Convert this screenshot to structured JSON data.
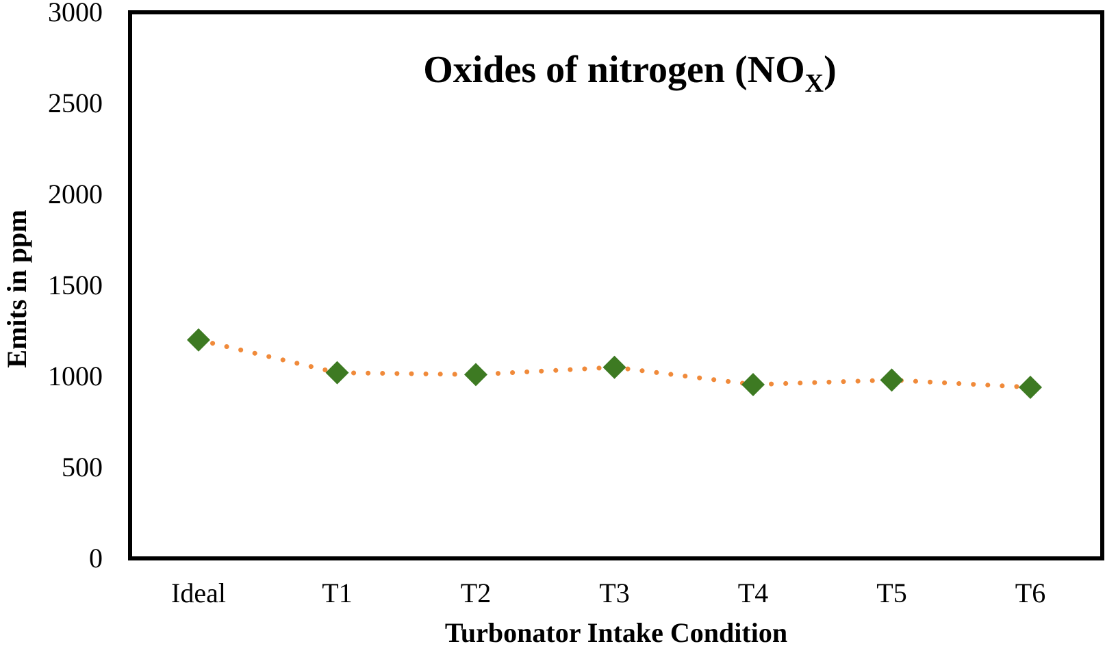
{
  "chart_data": {
    "type": "line",
    "title": "Oxides of nitrogen (NO",
    "title_subscript": "X",
    "title_end": ")",
    "xlabel": "Turbonator  Intake Condition",
    "ylabel": "Emits  in ppm",
    "categories": [
      "Ideal",
      "T1",
      "T2",
      "T3",
      "T4",
      "T5",
      "T6"
    ],
    "series": [
      {
        "values": [
          1200,
          1020,
          1010,
          1050,
          955,
          980,
          940
        ],
        "marker": "diamond",
        "marker_color": "#3d7a22",
        "line_color": "#f08a3a",
        "line_style": "dotted"
      }
    ],
    "ylim": [
      0,
      3000
    ],
    "yticks": [
      0,
      500,
      1000,
      1500,
      2000,
      2500,
      3000
    ],
    "ytick_labels": [
      "0",
      "500",
      "1000",
      "1500",
      "2000",
      "2500",
      "3000"
    ],
    "grid": false,
    "legend": "none"
  }
}
